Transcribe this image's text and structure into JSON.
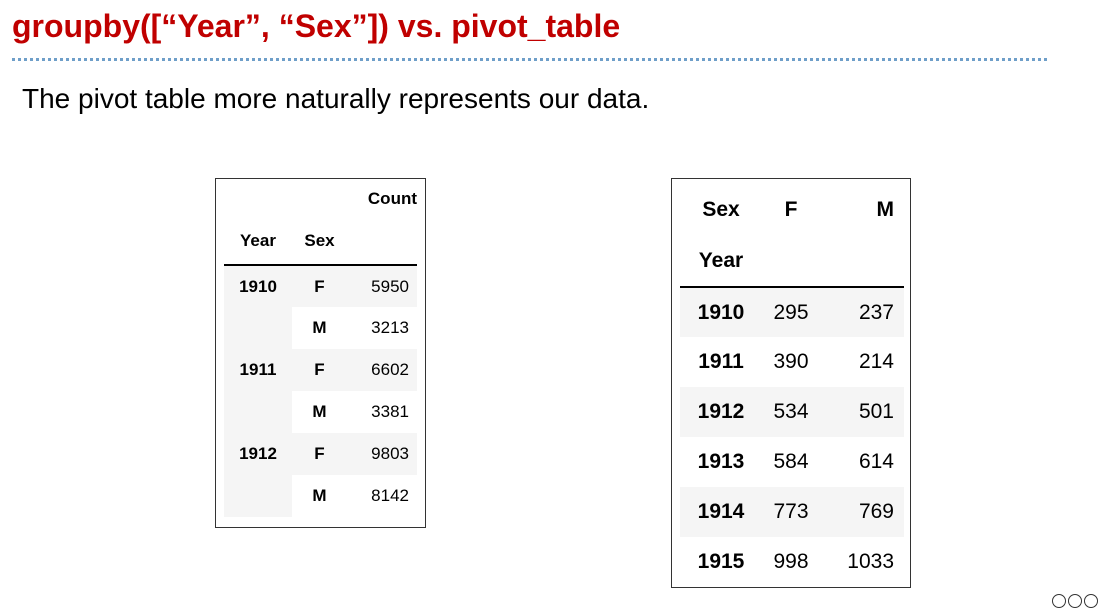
{
  "slide": {
    "title": "groupby([“Year”, “Sex”]) vs. pivot_table",
    "subtitle": "The pivot table more naturally represents our data."
  },
  "groupby_table": {
    "column_header": "Count",
    "index_headers": [
      "Year",
      "Sex"
    ],
    "rows": [
      {
        "year": "1910",
        "sex": "F",
        "count": "5950"
      },
      {
        "year": "",
        "sex": "M",
        "count": "3213"
      },
      {
        "year": "1911",
        "sex": "F",
        "count": "6602"
      },
      {
        "year": "",
        "sex": "M",
        "count": "3381"
      },
      {
        "year": "1912",
        "sex": "F",
        "count": "9803"
      },
      {
        "year": "",
        "sex": "M",
        "count": "8142"
      }
    ]
  },
  "pivot_table": {
    "columns_name": "Sex",
    "columns": [
      "F",
      "M"
    ],
    "index_name": "Year",
    "rows": [
      {
        "year": "1910",
        "f": "295",
        "m": "237"
      },
      {
        "year": "1911",
        "f": "390",
        "m": "214"
      },
      {
        "year": "1912",
        "f": "534",
        "m": "501"
      },
      {
        "year": "1913",
        "f": "584",
        "m": "614"
      },
      {
        "year": "1914",
        "f": "773",
        "m": "769"
      },
      {
        "year": "1915",
        "f": "998",
        "m": "1033"
      }
    ]
  },
  "license_icon": "creative-commons-icon"
}
